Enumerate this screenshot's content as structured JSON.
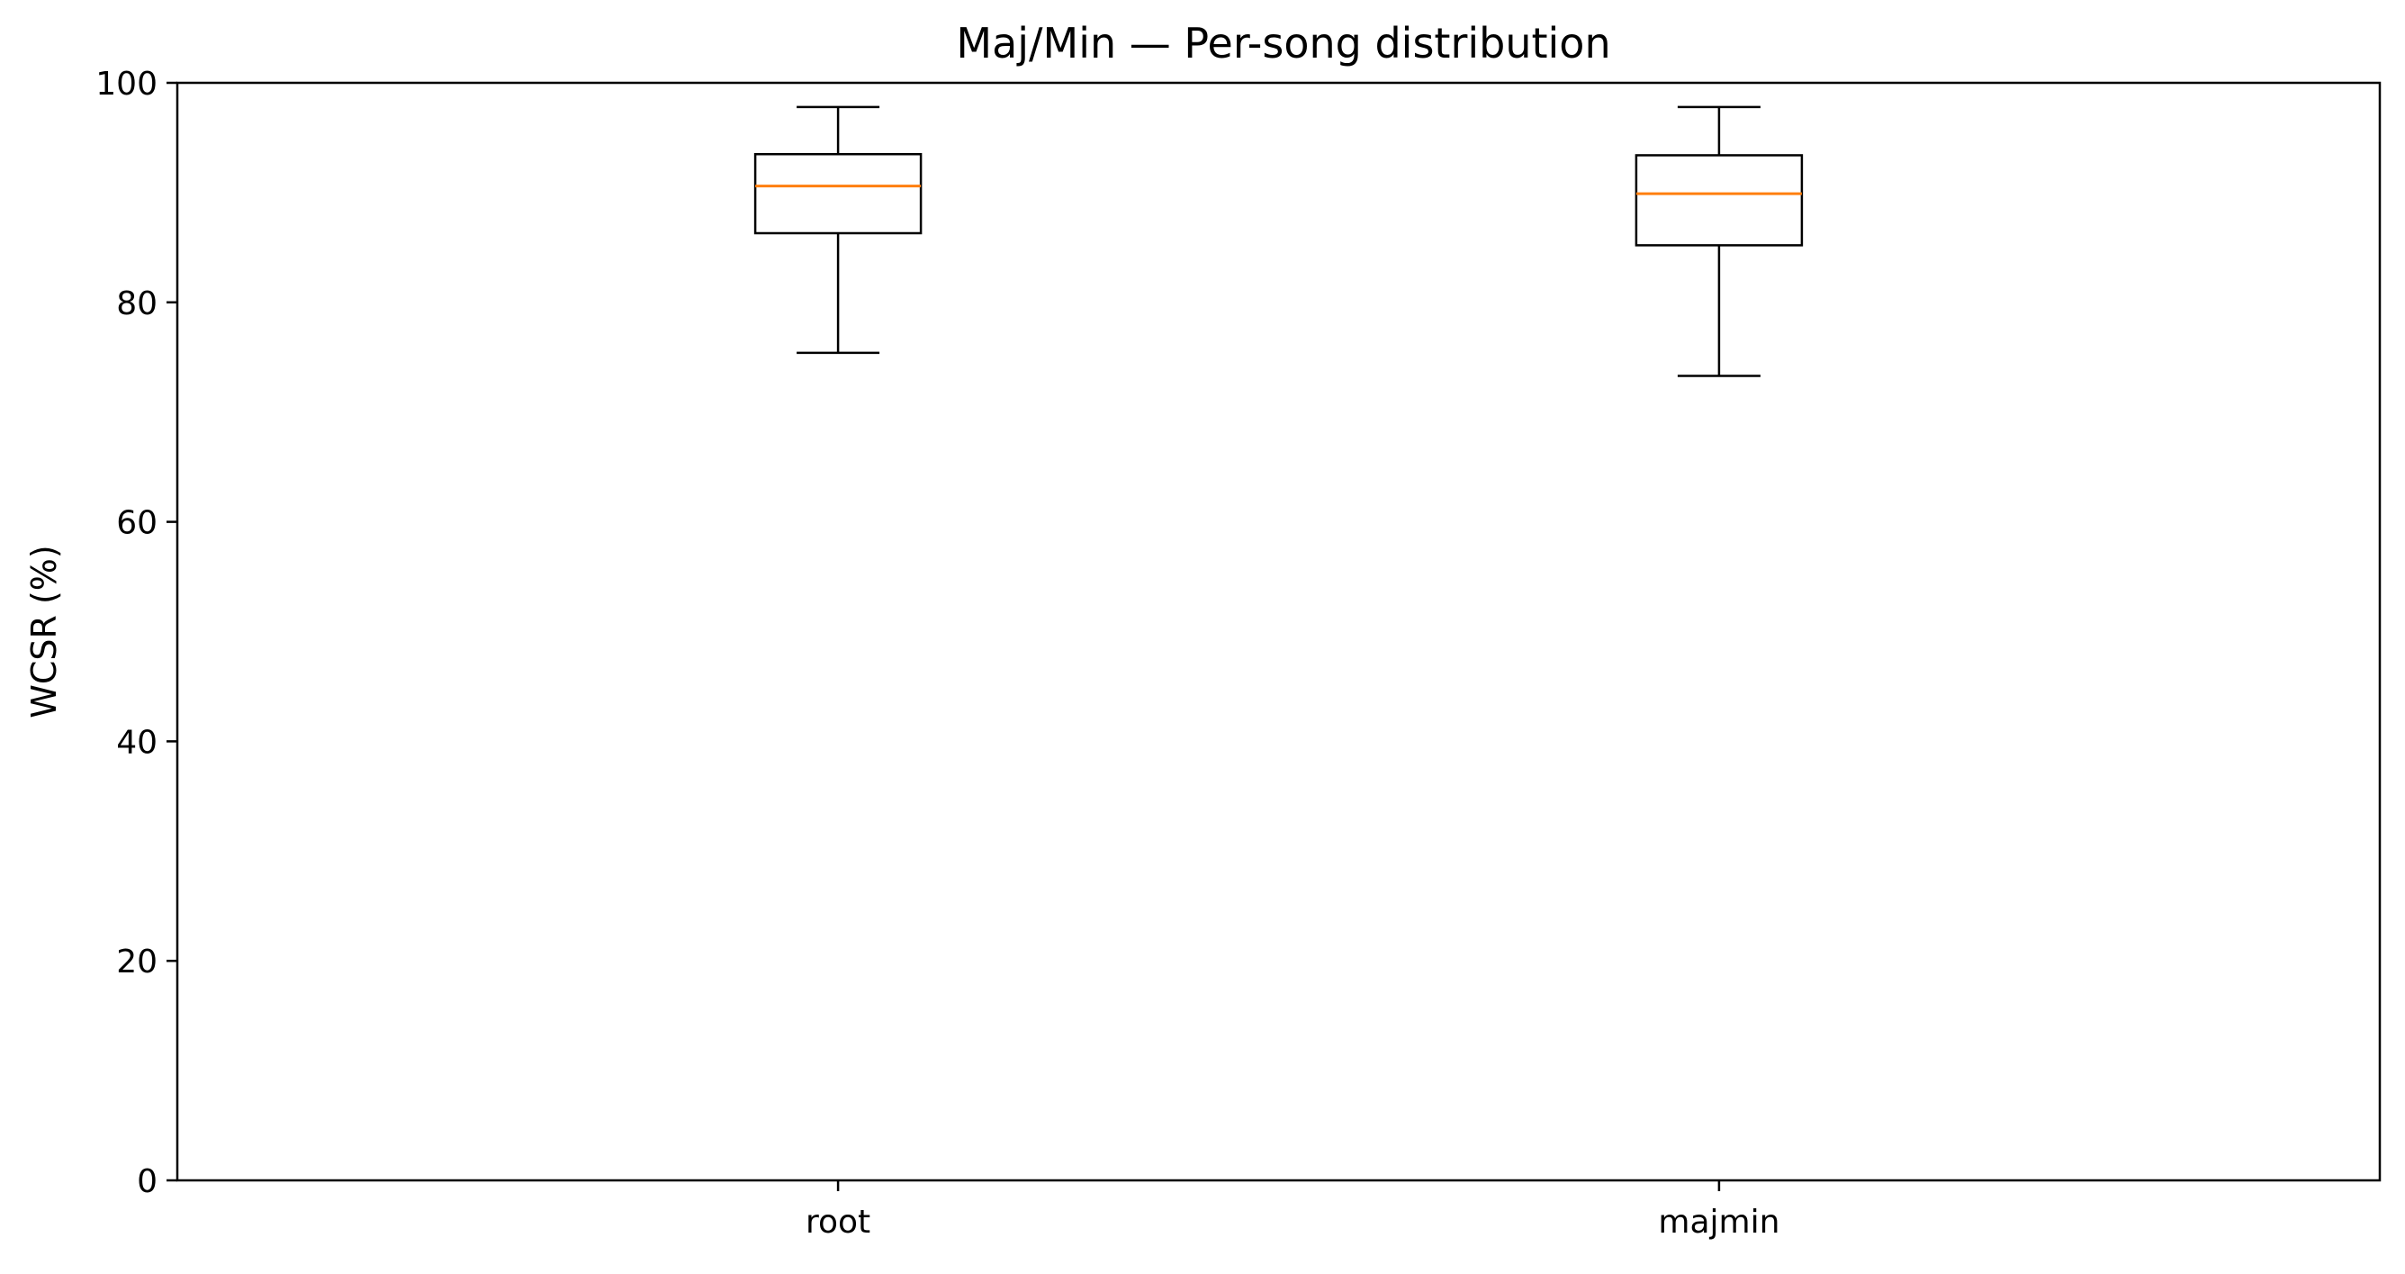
{
  "chart_data": {
    "type": "boxplot",
    "title": "Maj/Min — Per-song distribution",
    "xlabel": "",
    "ylabel": "WCSR (%)",
    "ylim": [
      0,
      100
    ],
    "yticks": [
      0,
      20,
      40,
      60,
      80,
      100
    ],
    "grid": false,
    "categories": [
      "root",
      "majmin"
    ],
    "boxes": [
      {
        "category": "root",
        "whisker_low": 75.4,
        "q1": 86.3,
        "median": 90.6,
        "q3": 93.5,
        "whisker_high": 97.8
      },
      {
        "category": "majmin",
        "whisker_low": 73.3,
        "q1": 85.2,
        "median": 89.9,
        "q3": 93.4,
        "whisker_high": 97.8
      }
    ],
    "colors": {
      "box": "#000000",
      "median": "#ff7f0e",
      "axes": "#000000",
      "background": "#ffffff"
    }
  }
}
